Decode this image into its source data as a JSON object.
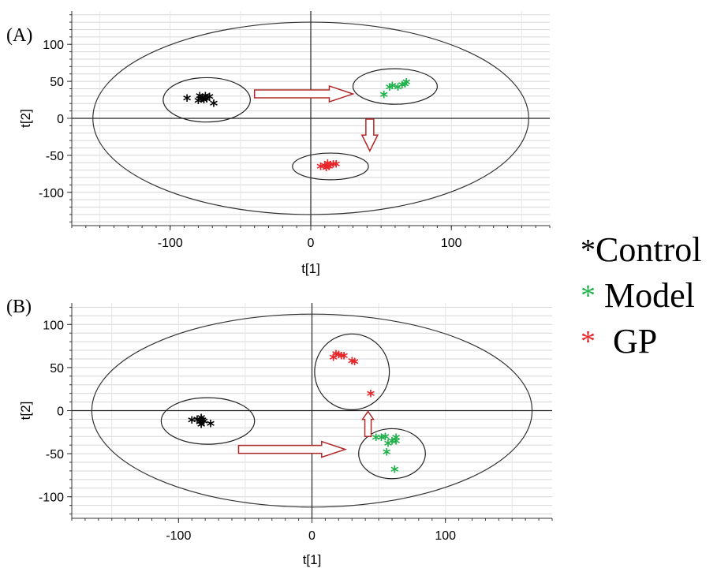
{
  "chart_data": [
    {
      "type": "scatter",
      "panel_label": "(A)",
      "xlabel": "t[1]",
      "ylabel": "t[2]",
      "xlim": [
        -170,
        170
      ],
      "ylim": [
        -145,
        145
      ],
      "xticks": [
        -100,
        0,
        100
      ],
      "yticks": [
        -100,
        -50,
        0,
        50,
        100
      ],
      "grid": "horizontal",
      "ellipse": {
        "cx": 0,
        "cy": 0,
        "rx": 155,
        "ry": 130
      },
      "series": [
        {
          "name": "Control",
          "color": "#000000",
          "points": [
            [
              -88,
              25
            ],
            [
              -80,
              22
            ],
            [
              -79,
              28
            ],
            [
              -77,
              25
            ],
            [
              -76,
              23
            ],
            [
              -75,
              28
            ],
            [
              -78,
              24
            ],
            [
              -74,
              24
            ],
            [
              -72,
              27
            ],
            [
              -69,
              18
            ]
          ]
        },
        {
          "name": "Model",
          "color": "#21b24b",
          "points": [
            [
              52,
              30
            ],
            [
              56,
              40
            ],
            [
              58,
              42
            ],
            [
              62,
              40
            ],
            [
              65,
              43
            ],
            [
              67,
              44
            ],
            [
              68,
              47
            ]
          ]
        },
        {
          "name": "GP",
          "color": "#e8262a",
          "points": [
            [
              7,
              -67
            ],
            [
              10,
              -66
            ],
            [
              11,
              -69
            ],
            [
              12,
              -63
            ],
            [
              13,
              -67
            ],
            [
              14,
              -65
            ],
            [
              16,
              -64
            ],
            [
              18,
              -64
            ]
          ]
        }
      ],
      "group_circles": [
        {
          "cx": -74,
          "cy": 25,
          "rx": 31,
          "ry": 30
        },
        {
          "cx": 60,
          "cy": 43,
          "rx": 30,
          "ry": 24
        },
        {
          "cx": 14,
          "cy": -65,
          "rx": 27,
          "ry": 18
        }
      ],
      "arrows": [
        {
          "from": [
            -40,
            33
          ],
          "to": [
            30,
            33
          ],
          "direction": "right"
        },
        {
          "from": [
            42,
            -1
          ],
          "to": [
            42,
            -44
          ],
          "direction": "down"
        }
      ]
    },
    {
      "type": "scatter",
      "panel_label": "(B)",
      "xlabel": "t[1]",
      "ylabel": "t[2]",
      "xlim": [
        -180,
        180
      ],
      "ylim": [
        -125,
        125
      ],
      "xticks": [
        -100,
        0,
        100
      ],
      "yticks": [
        -100,
        -50,
        0,
        50,
        100
      ],
      "grid": "horizontal",
      "ellipse": {
        "cx": 0,
        "cy": 0,
        "rx": 165,
        "ry": 112
      },
      "series": [
        {
          "name": "Control",
          "color": "#000000",
          "points": [
            [
              -90,
              -13
            ],
            [
              -86,
              -12
            ],
            [
              -84,
              -15
            ],
            [
              -83,
              -10
            ],
            [
              -82,
              -13
            ],
            [
              -83,
              -18
            ],
            [
              -81,
              -14
            ],
            [
              -76,
              -17
            ]
          ]
        },
        {
          "name": "Model",
          "color": "#21b24b",
          "points": [
            [
              48,
              -33
            ],
            [
              52,
              -33
            ],
            [
              55,
              -32
            ],
            [
              57,
              -40
            ],
            [
              60,
              -37
            ],
            [
              63,
              -37
            ],
            [
              63,
              -33
            ],
            [
              56,
              -50
            ],
            [
              62,
              -70
            ]
          ]
        },
        {
          "name": "GP",
          "color": "#e8262a",
          "points": [
            [
              16,
              60
            ],
            [
              18,
              64
            ],
            [
              20,
              63
            ],
            [
              22,
              62
            ],
            [
              24,
              62
            ],
            [
              30,
              56
            ],
            [
              32,
              55
            ],
            [
              44,
              18
            ]
          ]
        }
      ],
      "group_circles": [
        {
          "cx": -78,
          "cy": -12,
          "rx": 35,
          "ry": 27
        },
        {
          "cx": 30,
          "cy": 45,
          "rx": 28,
          "ry": 44
        },
        {
          "cx": 60,
          "cy": -50,
          "rx": 25,
          "ry": 29
        }
      ],
      "arrows": [
        {
          "from": [
            -55,
            -45
          ],
          "to": [
            25,
            -45
          ],
          "direction": "right"
        },
        {
          "from": [
            42,
            -30
          ],
          "to": [
            42,
            -1
          ],
          "direction": "up"
        }
      ]
    }
  ],
  "legend": [
    {
      "marker": "*",
      "label": "Control",
      "color": "#000000"
    },
    {
      "marker": "*",
      "label": " Model",
      "color": "#21b24b"
    },
    {
      "marker": "*",
      "label": "  GP",
      "color": "#e8262a"
    }
  ]
}
